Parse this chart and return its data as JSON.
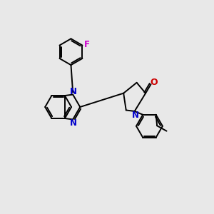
{
  "background_color": "#e8e8e8",
  "bond_color": "#000000",
  "N_color": "#0000cc",
  "O_color": "#cc0000",
  "F_color": "#cc00cc",
  "line_width": 1.4,
  "figsize": [
    3.0,
    3.0
  ],
  "dpi": 100,
  "xlim": [
    0,
    10
  ],
  "ylim": [
    0,
    10
  ]
}
